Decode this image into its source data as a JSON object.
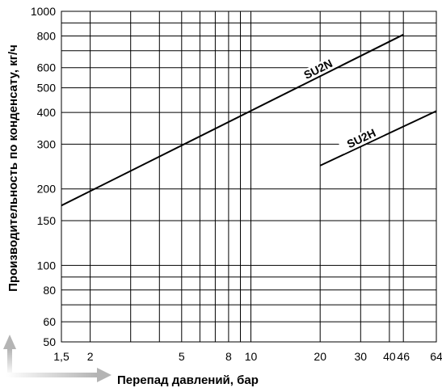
{
  "chart_data": {
    "type": "line",
    "x_scale": "log",
    "y_scale": "log",
    "xlim": [
      1.5,
      64
    ],
    "ylim": [
      50,
      1000
    ],
    "xlabel": "Перепад давлений, бар",
    "ylabel": "Производительность по конденсату, кг/ч",
    "x_ticks": [
      "1,5",
      "2",
      "5",
      "8",
      "10",
      "20",
      "30",
      "40",
      "46",
      "64"
    ],
    "x_tick_values": [
      1.5,
      2,
      5,
      8,
      10,
      20,
      30,
      40,
      46,
      64
    ],
    "x_gridlines": [
      1.5,
      2,
      3,
      4,
      5,
      6,
      7,
      8,
      9,
      10,
      20,
      30,
      40,
      46,
      64
    ],
    "y_ticks": [
      "1000",
      "800",
      "600",
      "500",
      "400",
      "300",
      "200",
      "150",
      "100",
      "80",
      "60",
      "50"
    ],
    "y_tick_values": [
      1000,
      800,
      600,
      500,
      400,
      300,
      200,
      150,
      100,
      80,
      60,
      50
    ],
    "y_gridlines": [
      50,
      60,
      70,
      80,
      90,
      100,
      150,
      200,
      300,
      400,
      500,
      600,
      700,
      800,
      900,
      1000
    ],
    "grid": true,
    "series": [
      {
        "name": "SU2N",
        "x": [
          1.5,
          46
        ],
        "y": [
          172,
          810
        ]
      },
      {
        "name": "SU2H",
        "x": [
          20,
          64
        ],
        "y": [
          247,
          405
        ]
      }
    ]
  }
}
